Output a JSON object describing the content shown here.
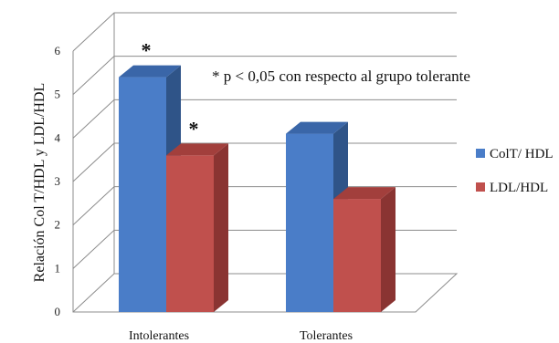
{
  "chart_data": {
    "type": "bar",
    "categories": [
      "Intolerantes",
      "Tolerantes"
    ],
    "series": [
      {
        "name": "ColT/ HDL",
        "values": [
          5.4,
          4.1
        ],
        "color": "#4a7dc8",
        "side_color": "#2f5488",
        "top_color": "#3a66a8"
      },
      {
        "name": "LDL/HDL",
        "values": [
          3.6,
          2.6
        ],
        "color": "#c0504d",
        "side_color": "#8a3432",
        "top_color": "#a23f3c"
      }
    ],
    "ylabel": "Relación Col T/HDL y LDL/HDL",
    "ylim": [
      0,
      6
    ],
    "yticks": [
      "0",
      "1",
      "2",
      "3",
      "4",
      "5",
      "6"
    ],
    "grid": true,
    "legend_position": "right",
    "annotation": "* p < 0,05 con respecto al grupo tolerante",
    "significance_markers": [
      {
        "category": "Intolerantes",
        "series": "ColT/ HDL",
        "text": "*"
      },
      {
        "category": "Intolerantes",
        "series": "LDL/HDL",
        "text": "*"
      }
    ]
  }
}
